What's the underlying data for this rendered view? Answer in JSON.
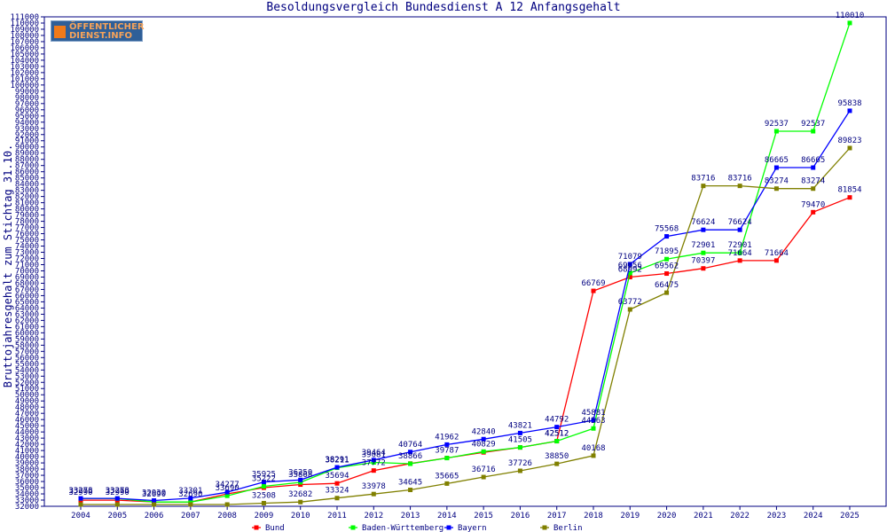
{
  "logo": {
    "text": "ÖFFENTLICHER\nDIENST.INFO"
  },
  "chart_data": {
    "type": "line",
    "title": "Besoldungsvergleich Bundesdienst A 12 Anfangsgehalt",
    "xlabel": "",
    "ylabel": "Bruttojahresgehalt zum Stichtag 31.10.",
    "ylim": [
      32000,
      111000
    ],
    "y_tick_step": 1000,
    "grid": false,
    "legend_position": "bottom",
    "categories": [
      "2004",
      "2005",
      "2006",
      "2007",
      "2008",
      "2009",
      "2010",
      "2011",
      "2012",
      "2013",
      "2014",
      "2015",
      "2016",
      "2017",
      "2018",
      "2019",
      "2020",
      "2021",
      "2022",
      "2023",
      "2024",
      "2025"
    ],
    "series": [
      {
        "name": "Bund",
        "color": "#ff0000",
        "values": [
          32990,
          32990,
          32700,
          32700,
          34000,
          35000,
          35500,
          35694,
          37772,
          38900,
          39800,
          40700,
          41500,
          42512,
          66769,
          68992,
          69562,
          70397,
          71664,
          71664,
          79470,
          81854
        ],
        "labels": [
          "32990",
          "32990",
          "",
          "",
          "",
          "",
          "",
          "35694",
          "37772",
          "",
          "",
          "",
          "",
          "42512",
          "66769",
          "68992",
          "69562",
          "70397",
          "71664",
          "71664",
          "79470",
          "81854"
        ]
      },
      {
        "name": "Baden-Württemberg",
        "color": "#00ff00",
        "values": [
          33256,
          33256,
          32690,
          32690,
          33690,
          35222,
          35868,
          38211,
          39081,
          38866,
          39787,
          40829,
          41505,
          42512,
          44563,
          69656,
          71895,
          72901,
          72901,
          92537,
          92537,
          110010
        ],
        "labels": [
          "33256",
          "33256",
          "32690",
          "32690",
          "33690",
          "35222",
          "35868",
          "38211",
          "39081",
          "38866",
          "39787",
          "40829",
          "41505",
          "42512",
          "44563",
          "69656",
          "71895",
          "72901",
          "72901",
          "92537",
          "92537",
          "110010"
        ]
      },
      {
        "name": "Bayern",
        "color": "#0000ff",
        "values": [
          33273,
          33273,
          32930,
          33301,
          34277,
          35925,
          36250,
          38291,
          39464,
          40764,
          41962,
          42840,
          43821,
          44792,
          45881,
          71079,
          75568,
          76624,
          76624,
          86665,
          86665,
          95838
        ],
        "labels": [
          "33273",
          "33273",
          "32930",
          "33301",
          "34277",
          "35925",
          "36250",
          "38291",
          "39464",
          "40764",
          "41962",
          "42840",
          "43821",
          "44792",
          "45881",
          "71079",
          "75568",
          "76624",
          "76624",
          "86665",
          "86665",
          "95838"
        ]
      },
      {
        "name": "Berlin",
        "color": "#808000",
        "values": [
          32290,
          32290,
          32290,
          32290,
          32290,
          32508,
          32682,
          33324,
          33978,
          34645,
          35665,
          36716,
          37726,
          38850,
          40168,
          63772,
          66475,
          83716,
          83716,
          83274,
          83274,
          89823
        ],
        "labels": [
          "",
          "",
          "",
          "",
          "",
          "32508",
          "32682",
          "33324",
          "33978",
          "34645",
          "35665",
          "36716",
          "37726",
          "38850",
          "40168",
          "63772",
          "66475",
          "83716",
          "83716",
          "83274",
          "83274",
          "89823"
        ]
      }
    ]
  }
}
